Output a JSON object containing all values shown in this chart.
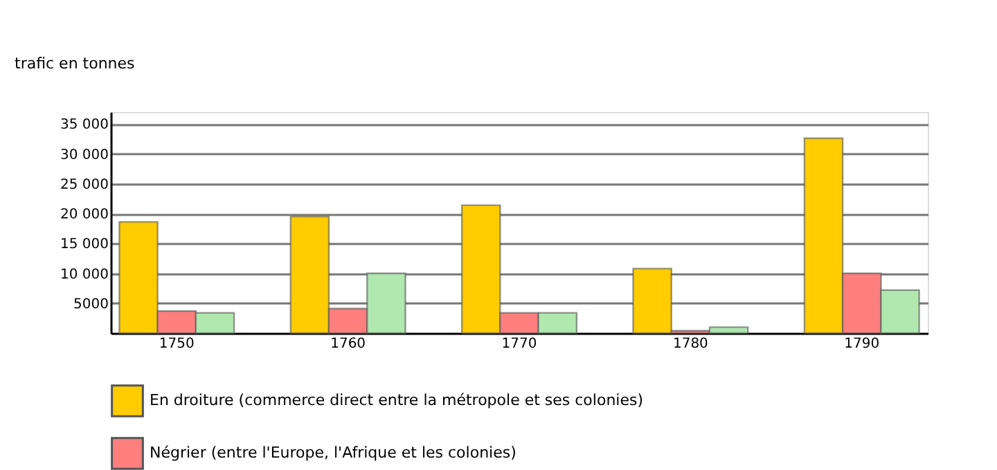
{
  "chart_data": {
    "type": "bar",
    "ylabel": "trafic en tonnes",
    "categories": [
      "1750",
      "1760",
      "1770",
      "1780",
      "1790"
    ],
    "series": [
      {
        "name": "En droiture (commerce direct entre la métropole et ses colonies)",
        "color": "#ffcc00",
        "values": [
          18600,
          19500,
          21400,
          10800,
          32600
        ]
      },
      {
        "name": "Négrier (entre l'Europe, l'Afrique et les colonies)",
        "color": "#ff7f7f",
        "values": [
          3700,
          4100,
          3400,
          400,
          10000
        ]
      },
      {
        "color": "#b0e8b0",
        "values": [
          3400,
          10000,
          3400,
          1000,
          7200
        ]
      }
    ],
    "ylim": [
      0,
      37000
    ],
    "yticks": [
      {
        "value": 5000,
        "label": "5000"
      },
      {
        "value": 10000,
        "label": "10 000"
      },
      {
        "value": 15000,
        "label": "15 000"
      },
      {
        "value": 20000,
        "label": "20 000"
      },
      {
        "value": 25000,
        "label": "25 000"
      },
      {
        "value": 30000,
        "label": "30 000"
      },
      {
        "value": 35000,
        "label": "35 000"
      }
    ],
    "grid": "y",
    "legend": "bottom"
  }
}
